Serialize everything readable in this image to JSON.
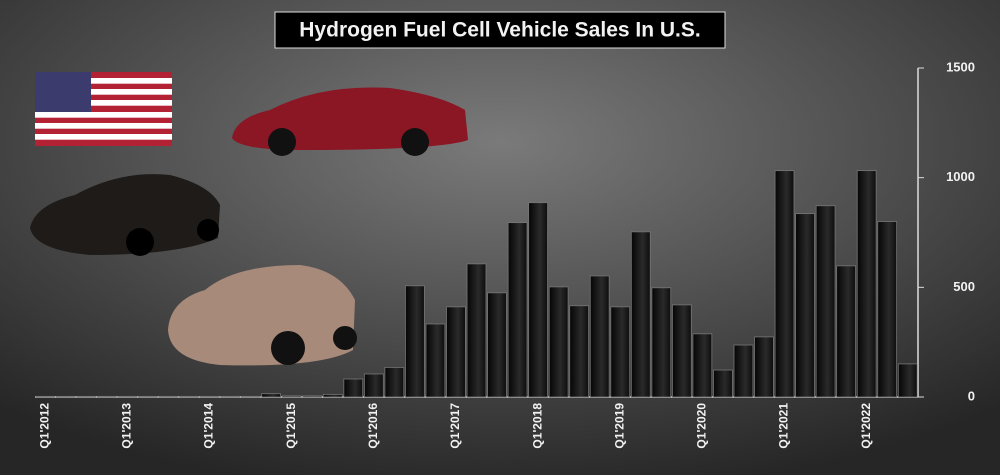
{
  "chart_data": {
    "type": "bar",
    "title": "Hydrogen Fuel Cell Vehicle Sales In U.S.",
    "categories": [
      "Q1'2012",
      null,
      null,
      null,
      "Q1'2013",
      null,
      null,
      null,
      "Q1'2014",
      null,
      null,
      null,
      "Q1'2015",
      null,
      null,
      null,
      "Q1'2016",
      null,
      null,
      null,
      "Q1'2017",
      null,
      null,
      null,
      "Q1'2018",
      null,
      null,
      null,
      "Q1'2019",
      null,
      null,
      null,
      "Q1'2020",
      null,
      null,
      null,
      "Q1'2021",
      null,
      null,
      null,
      "Q1'2022",
      null,
      null
    ],
    "values": [
      3,
      3,
      3,
      3,
      3,
      3,
      3,
      3,
      3,
      3,
      3,
      15,
      5,
      5,
      12,
      82,
      105,
      135,
      507,
      333,
      411,
      607,
      475,
      795,
      886,
      502,
      416,
      552,
      411,
      753,
      498,
      420,
      288,
      123,
      237,
      274,
      1032,
      836,
      872,
      598,
      1032,
      800,
      151
    ],
    "color": "#1a1a1a",
    "ylim": [
      0,
      1500
    ],
    "yticks": [
      0,
      500,
      1000,
      1500
    ],
    "grid": false
  }
}
